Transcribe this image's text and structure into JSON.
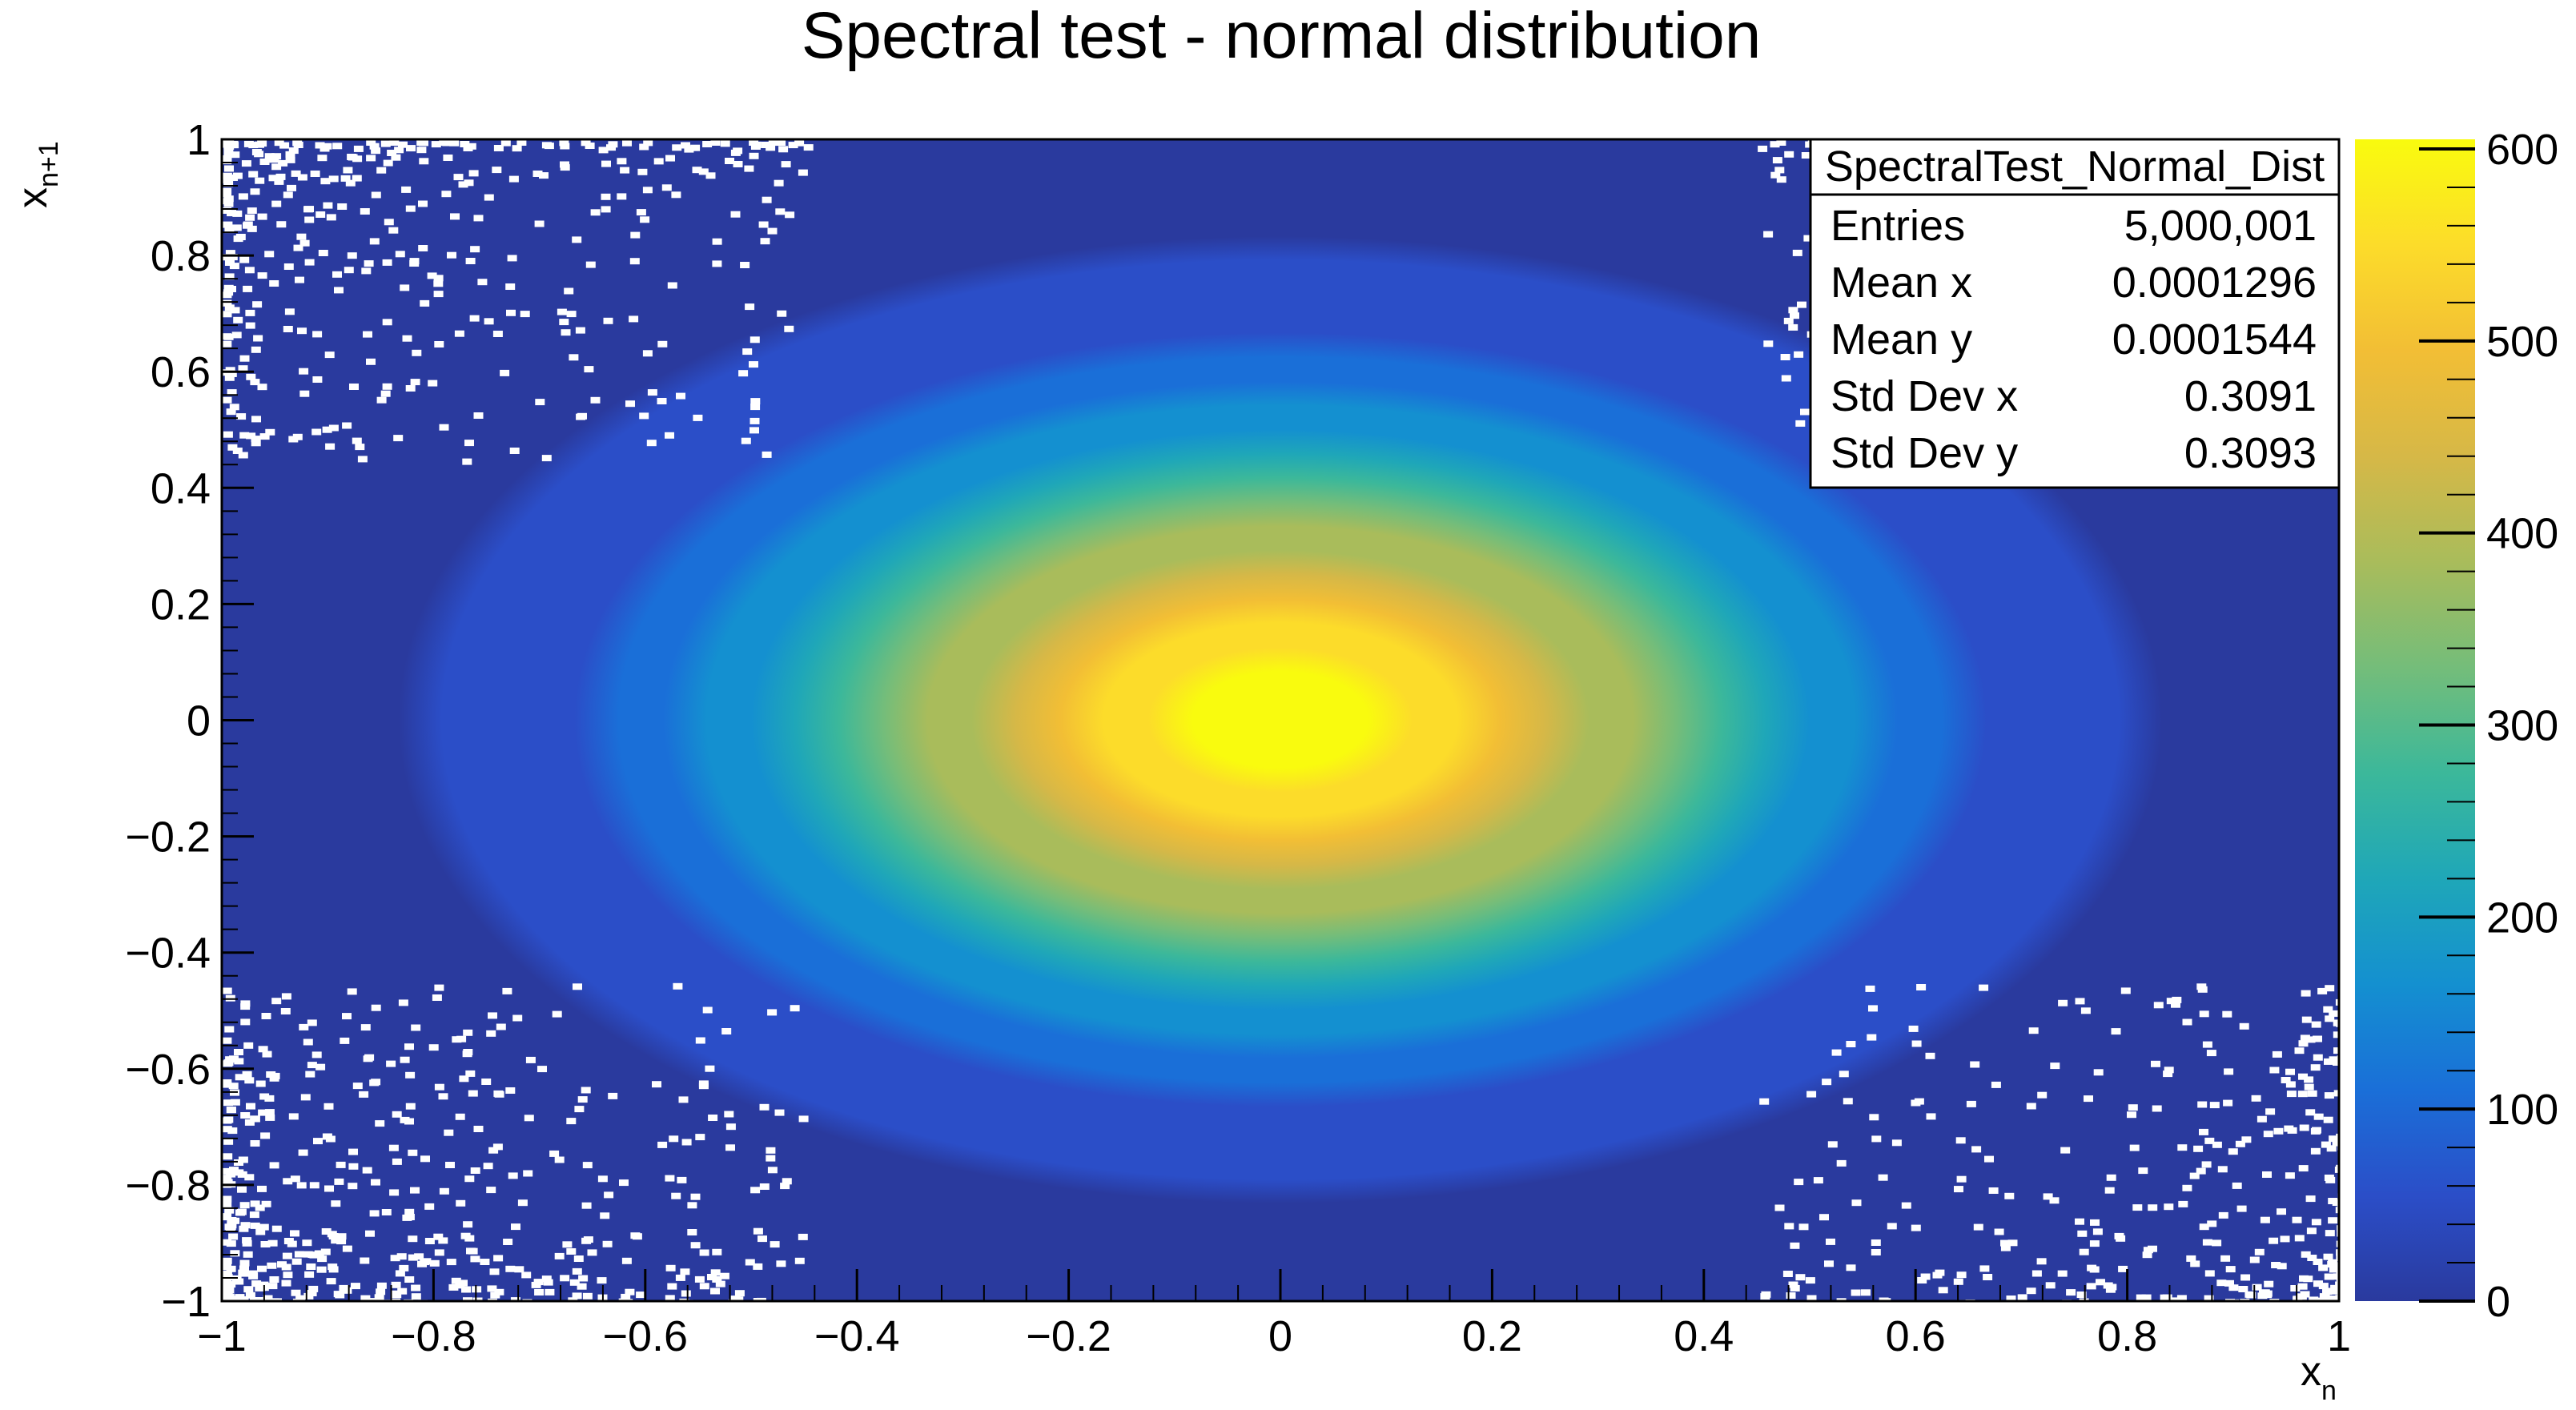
{
  "chart_data": {
    "type": "heatmap",
    "title": "Spectral test - normal distribution",
    "xlabel": {
      "base": "x",
      "sub": "n"
    },
    "ylabel": {
      "base": "x",
      "sub": "n+1"
    },
    "xlim": [
      -1,
      1
    ],
    "ylim": [
      -1,
      1
    ],
    "xticks": [
      {
        "value": -1,
        "label": "−1"
      },
      {
        "value": -0.8,
        "label": "−0.8"
      },
      {
        "value": -0.6,
        "label": "−0.6"
      },
      {
        "value": -0.4,
        "label": "−0.4"
      },
      {
        "value": -0.2,
        "label": "−0.2"
      },
      {
        "value": 0,
        "label": "0"
      },
      {
        "value": 0.2,
        "label": "0.2"
      },
      {
        "value": 0.4,
        "label": "0.4"
      },
      {
        "value": 0.6,
        "label": "0.6"
      },
      {
        "value": 0.8,
        "label": "0.8"
      },
      {
        "value": 1,
        "label": "1"
      }
    ],
    "yticks": [
      {
        "value": -1,
        "label": "−1"
      },
      {
        "value": -0.8,
        "label": "−0.8"
      },
      {
        "value": -0.6,
        "label": "−0.6"
      },
      {
        "value": -0.4,
        "label": "−0.4"
      },
      {
        "value": -0.2,
        "label": "−0.2"
      },
      {
        "value": 0,
        "label": "0"
      },
      {
        "value": 0.2,
        "label": "0.2"
      },
      {
        "value": 0.4,
        "label": "0.4"
      },
      {
        "value": 0.6,
        "label": "0.6"
      },
      {
        "value": 0.8,
        "label": "0.8"
      },
      {
        "value": 1,
        "label": "1"
      }
    ],
    "distribution": {
      "family": "bivariate normal",
      "peak_count": 600,
      "mean_x": 0,
      "mean_y": 0,
      "sigma_x": 0.33,
      "sigma_y": 0.24
    },
    "colorbar": {
      "min": 0,
      "max": 600,
      "ticks": [
        {
          "value": 0,
          "label": "0"
        },
        {
          "value": 100,
          "label": "100"
        },
        {
          "value": 200,
          "label": "200"
        },
        {
          "value": 300,
          "label": "300"
        },
        {
          "value": 400,
          "label": "400"
        },
        {
          "value": 500,
          "label": "500"
        },
        {
          "value": 600,
          "label": "600"
        }
      ],
      "palette": [
        "#2a3a9e",
        "#2b4ec8",
        "#1a6fd8",
        "#1490d0",
        "#1fa7b8",
        "#3cb89a",
        "#74bd7a",
        "#a9bc5b",
        "#d6b847",
        "#f2be35",
        "#fcdc2a",
        "#f9fb0e"
      ]
    },
    "stats_box": {
      "name": "SpectralTest_Normal_Dist",
      "rows": [
        {
          "label": "Entries",
          "value": "5,000,001"
        },
        {
          "label": "Mean x",
          "value": "0.0001296"
        },
        {
          "label": "Mean y",
          "value": "0.0001544"
        },
        {
          "label": "Std Dev x",
          "value": "0.3091"
        },
        {
          "label": "Std Dev y",
          "value": "0.3093"
        }
      ]
    }
  }
}
